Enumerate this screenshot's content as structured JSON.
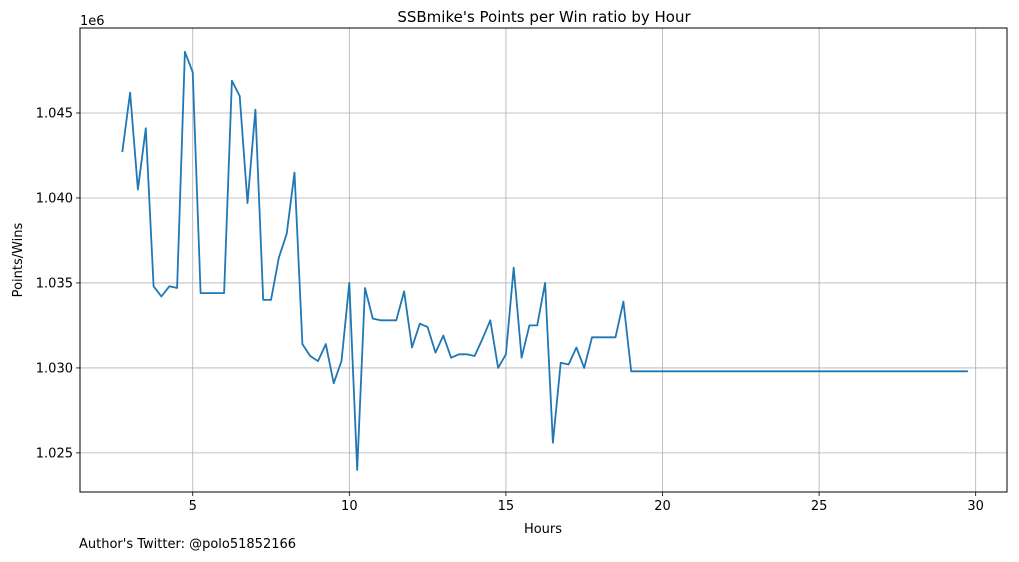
{
  "chart_data": {
    "type": "line",
    "title": "SSBmike's Points per Win ratio by Hour",
    "xlabel": "Hours",
    "ylabel": "Points/Wins",
    "y_offset_label": "1e6",
    "grid": true,
    "xlim": [
      1.4,
      31.0
    ],
    "ylim": [
      1.0227,
      1.05
    ],
    "x_ticks": [
      5,
      10,
      15,
      20,
      25,
      30
    ],
    "y_ticks": [
      1.025,
      1.03,
      1.035,
      1.04,
      1.045
    ],
    "x_tick_labels": [
      "5",
      "10",
      "15",
      "20",
      "25",
      "30"
    ],
    "y_tick_labels": [
      "1.025",
      "1.030",
      "1.035",
      "1.040",
      "1.045"
    ],
    "line_color": "#1f77b4",
    "series": [
      {
        "name": "Points/Wins",
        "x": [
          2.75,
          3.0,
          3.25,
          3.5,
          3.75,
          4.0,
          4.25,
          4.5,
          4.75,
          5.0,
          5.25,
          5.5,
          5.75,
          6.0,
          6.25,
          6.5,
          6.75,
          7.0,
          7.25,
          7.5,
          7.75,
          8.0,
          8.25,
          8.5,
          8.75,
          9.0,
          9.25,
          9.5,
          9.75,
          10.0,
          10.25,
          10.5,
          10.75,
          11.0,
          11.25,
          11.5,
          11.75,
          12.0,
          12.25,
          12.5,
          12.75,
          13.0,
          13.25,
          13.5,
          13.75,
          14.0,
          14.25,
          14.5,
          14.75,
          15.0,
          15.25,
          15.5,
          15.75,
          16.0,
          16.25,
          16.5,
          16.75,
          17.0,
          17.25,
          17.5,
          17.75,
          18.0,
          18.25,
          18.5,
          18.75,
          19.0,
          29.75
        ],
        "values": [
          1.0427,
          1.0462,
          1.0405,
          1.0441,
          1.0348,
          1.0342,
          1.0348,
          1.0347,
          1.0486,
          1.0474,
          1.0344,
          1.0344,
          1.0344,
          1.0344,
          1.0469,
          1.046,
          1.0397,
          1.0452,
          1.034,
          1.034,
          1.0365,
          1.0379,
          1.0415,
          1.0314,
          1.0307,
          1.0304,
          1.0314,
          1.0291,
          1.0304,
          1.035,
          1.024,
          1.0347,
          1.0329,
          1.0328,
          1.0328,
          1.0328,
          1.0345,
          1.0312,
          1.0326,
          1.0324,
          1.0309,
          1.0319,
          1.0306,
          1.0308,
          1.0308,
          1.0307,
          1.0317,
          1.0328,
          1.03,
          1.0308,
          1.0359,
          1.0306,
          1.0325,
          1.0325,
          1.035,
          1.0256,
          1.0303,
          1.0302,
          1.0312,
          1.03,
          1.0318,
          1.0318,
          1.0318,
          1.0318,
          1.0339,
          1.0298,
          1.0298
        ]
      }
    ]
  },
  "footer": {
    "author": "Author's Twitter: @polo51852166"
  }
}
